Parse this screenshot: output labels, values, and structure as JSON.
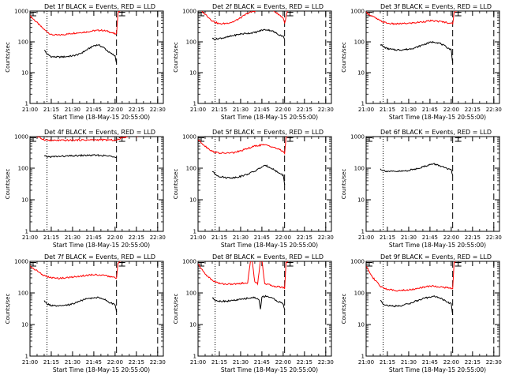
{
  "chart_data": [
    {
      "type": "line",
      "title": "Det 1f BLACK = Events, RED = LLD",
      "xlabel": "Start Time (18-May-15 20:55:00)",
      "ylabel": "Counts/sec",
      "yscale": "log",
      "ylim": [
        1,
        1000
      ],
      "xlim": [
        "21:00",
        "22:34"
      ],
      "xticks": [
        "21:00",
        "21:15",
        "21:30",
        "21:45",
        "22:00",
        "22:15",
        "22:30"
      ],
      "yticks": [
        "1",
        "10",
        "100",
        "1000"
      ],
      "vlines": {
        "dotted": [
          "21:12"
        ],
        "dashed": [
          "22:01",
          "22:30"
        ]
      },
      "series": [
        {
          "color": "#ff0000",
          "x": [
            "21:00",
            "21:05",
            "21:10",
            "21:15",
            "21:20",
            "21:25",
            "21:30",
            "21:35",
            "21:40",
            "21:45",
            "21:50",
            "21:55",
            "22:00",
            "22:01",
            "22:02",
            "22:04"
          ],
          "y": [
            700,
            420,
            250,
            170,
            165,
            175,
            190,
            200,
            210,
            230,
            240,
            220,
            180,
            175,
            900,
            1100
          ]
        },
        {
          "color": "#000000",
          "x": [
            "21:10",
            "21:12",
            "21:15",
            "21:20",
            "21:25",
            "21:30",
            "21:35",
            "21:40",
            "21:45",
            "21:48",
            "21:52",
            "21:56",
            "22:00",
            "22:01"
          ],
          "y": [
            55,
            40,
            33,
            32,
            33,
            35,
            40,
            55,
            75,
            80,
            65,
            45,
            35,
            20
          ]
        }
      ]
    },
    {
      "type": "line",
      "title": "Det 2f BLACK = Events, RED = LLD",
      "xlabel": "Start Time (18-May-15 20:55:00)",
      "ylabel": "Counts/sec",
      "yscale": "log",
      "ylim": [
        1,
        1000
      ],
      "xlim": [
        "21:00",
        "22:34"
      ],
      "xticks": [
        "21:00",
        "21:15",
        "21:30",
        "21:45",
        "22:00",
        "22:15",
        "22:30"
      ],
      "yticks": [
        "1",
        "10",
        "100",
        "1000"
      ],
      "vlines": {
        "dotted": [
          "21:12"
        ],
        "dashed": [
          "22:01",
          "22:30"
        ]
      },
      "series": [
        {
          "color": "#ff0000",
          "x": [
            "21:00",
            "21:05",
            "21:10",
            "21:15",
            "21:20",
            "21:25",
            "21:30",
            "21:35",
            "21:40",
            "21:45",
            "21:50",
            "21:55",
            "22:00",
            "22:01",
            "22:03",
            "22:08",
            "22:12",
            "22:16"
          ],
          "y": [
            1200,
            800,
            480,
            380,
            400,
            450,
            600,
            850,
            1000,
            1300,
            1250,
            900,
            600,
            400,
            1000,
            1100,
            1300,
            1000
          ]
        },
        {
          "color": "#000000",
          "x": [
            "21:10",
            "21:12",
            "21:15",
            "21:20",
            "21:25",
            "21:30",
            "21:35",
            "21:40",
            "21:45",
            "21:48",
            "21:52",
            "21:56",
            "22:00",
            "22:01"
          ],
          "y": [
            130,
            120,
            130,
            140,
            160,
            180,
            190,
            200,
            240,
            250,
            230,
            180,
            150,
            120
          ]
        }
      ]
    },
    {
      "type": "line",
      "title": "Det 3f BLACK = Events, RED = LLD",
      "xlabel": "Start Time (18-May-15 20:55:00)",
      "ylabel": "Counts/sec",
      "yscale": "log",
      "ylim": [
        1,
        1000
      ],
      "xlim": [
        "21:00",
        "22:34"
      ],
      "xticks": [
        "21:00",
        "21:15",
        "21:30",
        "21:45",
        "22:00",
        "22:15",
        "22:30"
      ],
      "yticks": [
        "1",
        "10",
        "100",
        "1000"
      ],
      "vlines": {
        "dotted": [
          "21:12"
        ],
        "dashed": [
          "22:01",
          "22:30"
        ]
      },
      "series": [
        {
          "color": "#ff0000",
          "x": [
            "21:00",
            "21:05",
            "21:10",
            "21:15",
            "21:20",
            "21:25",
            "21:30",
            "21:35",
            "21:40",
            "21:45",
            "21:50",
            "21:55",
            "22:00",
            "22:01",
            "22:02",
            "22:04"
          ],
          "y": [
            900,
            650,
            480,
            400,
            380,
            390,
            400,
            420,
            450,
            480,
            470,
            440,
            400,
            380,
            900,
            1100
          ]
        },
        {
          "color": "#000000",
          "x": [
            "21:10",
            "21:12",
            "21:15",
            "21:20",
            "21:25",
            "21:30",
            "21:35",
            "21:40",
            "21:45",
            "21:48",
            "21:52",
            "21:56",
            "22:00",
            "22:01"
          ],
          "y": [
            85,
            70,
            60,
            55,
            55,
            58,
            65,
            80,
            95,
            100,
            90,
            70,
            55,
            20
          ]
        }
      ]
    },
    {
      "type": "line",
      "title": "Det 4f BLACK = Events, RED = LLD",
      "xlabel": "Start Time (18-May-15 20:55:00)",
      "ylabel": "Counts/sec",
      "yscale": "log",
      "ylim": [
        1,
        1000
      ],
      "xlim": [
        "21:00",
        "22:34"
      ],
      "xticks": [
        "21:00",
        "21:15",
        "21:30",
        "21:45",
        "22:00",
        "22:15",
        "22:30"
      ],
      "yticks": [
        "1",
        "10",
        "100",
        "1000"
      ],
      "vlines": {
        "dotted": [
          "21:12"
        ],
        "dashed": [
          "22:01",
          "22:30"
        ]
      },
      "series": [
        {
          "color": "#ff0000",
          "x": [
            "21:00",
            "21:05",
            "21:10",
            "21:15",
            "21:20",
            "21:25",
            "21:30",
            "21:35",
            "21:40",
            "21:45",
            "21:50",
            "21:55",
            "22:00",
            "22:01",
            "22:04",
            "22:08",
            "22:12",
            "22:16"
          ],
          "y": [
            1400,
            1000,
            800,
            750,
            760,
            760,
            770,
            780,
            780,
            790,
            790,
            780,
            770,
            760,
            900,
            1000,
            1200,
            1000
          ]
        },
        {
          "color": "#000000",
          "x": [
            "21:10",
            "21:12",
            "21:15",
            "21:20",
            "21:25",
            "21:30",
            "21:35",
            "21:40",
            "21:45",
            "21:48",
            "21:52",
            "21:56",
            "22:00",
            "22:01"
          ],
          "y": [
            240,
            230,
            230,
            235,
            240,
            245,
            250,
            255,
            255,
            255,
            250,
            240,
            235,
            220
          ]
        }
      ]
    },
    {
      "type": "line",
      "title": "Det 5f BLACK = Events, RED = LLD",
      "xlabel": "Start Time (18-May-15 20:55:00)",
      "ylabel": "Counts/sec",
      "yscale": "log",
      "ylim": [
        1,
        1000
      ],
      "xlim": [
        "21:00",
        "22:34"
      ],
      "xticks": [
        "21:00",
        "21:15",
        "21:30",
        "21:45",
        "22:00",
        "22:15",
        "22:30"
      ],
      "yticks": [
        "1",
        "10",
        "100",
        "1000"
      ],
      "vlines": {
        "dotted": [
          "21:12"
        ],
        "dashed": [
          "22:01",
          "22:30"
        ]
      },
      "series": [
        {
          "color": "#ff0000",
          "x": [
            "21:00",
            "21:05",
            "21:10",
            "21:15",
            "21:20",
            "21:25",
            "21:30",
            "21:35",
            "21:40",
            "21:45",
            "21:50",
            "21:55",
            "22:00",
            "22:01",
            "22:02",
            "22:04"
          ],
          "y": [
            800,
            500,
            340,
            300,
            300,
            310,
            350,
            420,
            500,
            550,
            520,
            430,
            340,
            300,
            900,
            1100
          ]
        },
        {
          "color": "#000000",
          "x": [
            "21:10",
            "21:12",
            "21:15",
            "21:20",
            "21:25",
            "21:30",
            "21:35",
            "21:40",
            "21:45",
            "21:48",
            "21:52",
            "21:56",
            "22:00",
            "22:01"
          ],
          "y": [
            80,
            65,
            55,
            50,
            50,
            55,
            65,
            80,
            110,
            120,
            100,
            75,
            60,
            30
          ]
        }
      ]
    },
    {
      "type": "line",
      "title": "Det 6f BLACK = Events, RED = LLD",
      "xlabel": "Start Time (18-May-15 20:55:00)",
      "ylabel": "Counts/sec",
      "yscale": "log",
      "ylim": [
        1,
        1000
      ],
      "xlim": [
        "21:00",
        "22:34"
      ],
      "xticks": [
        "21:00",
        "21:15",
        "21:30",
        "21:45",
        "22:00",
        "22:15",
        "22:30"
      ],
      "yticks": [
        "1",
        "10",
        "100",
        "1000"
      ],
      "vlines": {
        "dotted": [
          "21:12"
        ],
        "dashed": [
          "22:01",
          "22:30"
        ]
      },
      "series": [
        {
          "color": "#000000",
          "x": [
            "21:10",
            "21:12",
            "21:15",
            "21:20",
            "21:25",
            "21:30",
            "21:35",
            "21:40",
            "21:45",
            "21:48",
            "21:52",
            "21:56",
            "22:00",
            "22:01"
          ],
          "y": [
            95,
            85,
            80,
            78,
            80,
            85,
            95,
            110,
            130,
            135,
            120,
            100,
            85,
            60
          ]
        }
      ]
    },
    {
      "type": "line",
      "title": "Det 7f BLACK = Events, RED = LLD",
      "xlabel": "Start Time (18-May-15 20:55:00)",
      "ylabel": "Counts/sec",
      "yscale": "log",
      "ylim": [
        1,
        1000
      ],
      "xlim": [
        "21:00",
        "22:34"
      ],
      "xticks": [
        "21:00",
        "21:15",
        "21:30",
        "21:45",
        "22:00",
        "22:15",
        "22:30"
      ],
      "yticks": [
        "1",
        "10",
        "100",
        "1000"
      ],
      "vlines": {
        "dotted": [
          "21:12"
        ],
        "dashed": [
          "22:01",
          "22:30"
        ]
      },
      "series": [
        {
          "color": "#ff0000",
          "x": [
            "21:00",
            "21:05",
            "21:10",
            "21:15",
            "21:20",
            "21:25",
            "21:30",
            "21:35",
            "21:40",
            "21:45",
            "21:50",
            "21:55",
            "22:00",
            "22:01",
            "22:02",
            "22:04"
          ],
          "y": [
            700,
            500,
            350,
            300,
            290,
            300,
            320,
            340,
            360,
            380,
            370,
            340,
            300,
            280,
            900,
            1000
          ]
        },
        {
          "color": "#000000",
          "x": [
            "21:10",
            "21:12",
            "21:15",
            "21:20",
            "21:25",
            "21:30",
            "21:35",
            "21:40",
            "21:45",
            "21:48",
            "21:52",
            "21:56",
            "22:00",
            "22:01"
          ],
          "y": [
            55,
            45,
            40,
            38,
            40,
            45,
            55,
            65,
            70,
            72,
            65,
            50,
            42,
            25
          ]
        }
      ]
    },
    {
      "type": "line",
      "title": "Det 8f BLACK = Events, RED = LLD",
      "xlabel": "Start Time (18-May-15 20:55:00)",
      "ylabel": "Counts/sec",
      "yscale": "log",
      "ylim": [
        1,
        1000
      ],
      "xlim": [
        "21:00",
        "22:34"
      ],
      "xticks": [
        "21:00",
        "21:15",
        "21:30",
        "21:45",
        "22:00",
        "22:15",
        "22:30"
      ],
      "yticks": [
        "1",
        "10",
        "100",
        "1000"
      ],
      "vlines": {
        "dotted": [
          "21:12"
        ],
        "dashed": [
          "22:01",
          "22:30"
        ]
      },
      "series": [
        {
          "color": "#ff0000",
          "x": [
            "21:00",
            "21:05",
            "21:10",
            "21:15",
            "21:20",
            "21:25",
            "21:30",
            "21:35",
            "21:37",
            "21:38",
            "21:40",
            "21:42",
            "21:44",
            "21:45",
            "21:47",
            "21:50",
            "21:55",
            "22:00",
            "22:01",
            "22:02",
            "22:04"
          ],
          "y": [
            800,
            400,
            250,
            200,
            190,
            190,
            200,
            210,
            1100,
            1100,
            230,
            200,
            1100,
            1100,
            200,
            180,
            160,
            150,
            140,
            900,
            1100
          ]
        },
        {
          "color": "#000000",
          "x": [
            "21:10",
            "21:12",
            "21:15",
            "21:20",
            "21:25",
            "21:30",
            "21:35",
            "21:40",
            "21:43",
            "21:44",
            "21:45",
            "21:48",
            "21:52",
            "21:56",
            "22:00",
            "22:01"
          ],
          "y": [
            70,
            60,
            55,
            55,
            58,
            62,
            68,
            72,
            60,
            30,
            75,
            80,
            70,
            55,
            45,
            30
          ]
        }
      ]
    },
    {
      "type": "line",
      "title": "Det 9f BLACK = Events, RED = LLD",
      "xlabel": "Start Time (18-May-15 20:55:00)",
      "ylabel": "Counts/sec",
      "yscale": "log",
      "ylim": [
        1,
        1000
      ],
      "xlim": [
        "21:00",
        "22:34"
      ],
      "xticks": [
        "21:00",
        "21:15",
        "21:30",
        "21:45",
        "22:00",
        "22:15",
        "22:30"
      ],
      "yticks": [
        "1",
        "10",
        "100",
        "1000"
      ],
      "vlines": {
        "dotted": [
          "21:12"
        ],
        "dashed": [
          "22:01",
          "22:30"
        ]
      },
      "series": [
        {
          "color": "#ff0000",
          "x": [
            "21:00",
            "21:05",
            "21:10",
            "21:15",
            "21:20",
            "21:25",
            "21:30",
            "21:35",
            "21:40",
            "21:45",
            "21:50",
            "21:55",
            "22:00",
            "22:01",
            "22:02",
            "22:04"
          ],
          "y": [
            700,
            300,
            160,
            130,
            120,
            120,
            125,
            135,
            150,
            165,
            160,
            150,
            140,
            130,
            900,
            1100
          ]
        },
        {
          "color": "#000000",
          "x": [
            "21:10",
            "21:12",
            "21:15",
            "21:20",
            "21:25",
            "21:30",
            "21:35",
            "21:40",
            "21:45",
            "21:48",
            "21:52",
            "21:56",
            "22:00",
            "22:01"
          ],
          "y": [
            60,
            45,
            40,
            38,
            40,
            45,
            55,
            65,
            75,
            78,
            70,
            55,
            45,
            20
          ]
        }
      ]
    }
  ]
}
